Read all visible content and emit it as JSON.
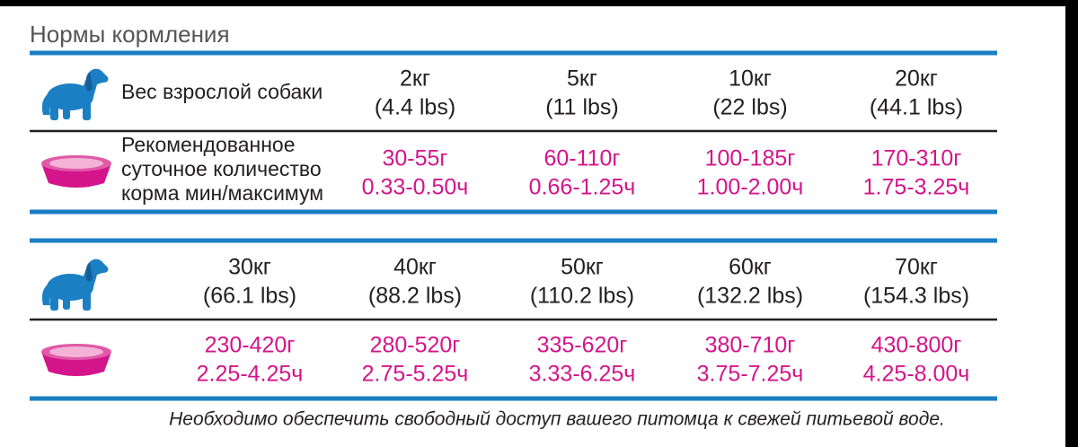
{
  "header": {
    "title": "Нормы кормления"
  },
  "table1": {
    "weight_label": "Вес взрослой собаки",
    "weights": [
      [
        "2кг",
        "(4.4 lbs)"
      ],
      [
        "5кг",
        "(11 lbs)"
      ],
      [
        "10кг",
        "(22 lbs)"
      ],
      [
        "20кг",
        "(44.1 lbs)"
      ]
    ],
    "feed_label": [
      "Рекомендованное",
      "суточное количество",
      "корма мин/максимум"
    ],
    "feeds": [
      [
        "30-55г",
        "0.33-0.50ч"
      ],
      [
        "60-110г",
        "0.66-1.25ч"
      ],
      [
        "100-185г",
        "1.00-2.00ч"
      ],
      [
        "170-310г",
        "1.75-3.25ч"
      ]
    ]
  },
  "table2": {
    "weights": [
      [
        "30кг",
        "(66.1 lbs)"
      ],
      [
        "40кг",
        "(88.2 lbs)"
      ],
      [
        "50кг",
        "(110.2 lbs)"
      ],
      [
        "60кг",
        "(132.2 lbs)"
      ],
      [
        "70кг",
        "(154.3 lbs)"
      ]
    ],
    "feeds": [
      [
        "230-420г",
        "2.25-4.25ч"
      ],
      [
        "280-520г",
        "2.75-5.25ч"
      ],
      [
        "335-620г",
        "3.33-6.25ч"
      ],
      [
        "380-710г",
        "3.75-7.25ч"
      ],
      [
        "430-800г",
        "4.25-8.00ч"
      ]
    ]
  },
  "footnote": "Необходимо обеспечить свободный доступ  вашего питомца к свежей питьевой воде."
}
